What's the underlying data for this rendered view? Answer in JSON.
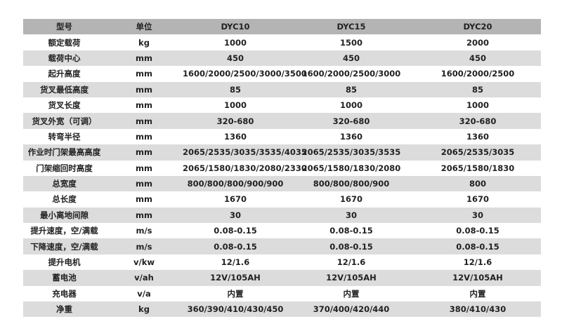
{
  "header": [
    "型号",
    "单位",
    "DYC10",
    "DYC15",
    "DYC20"
  ],
  "rows": [
    [
      "额定载荷",
      "kg",
      "1000",
      "1500",
      "2000"
    ],
    [
      "载荷中心",
      "mm",
      "450",
      "450",
      "450"
    ],
    [
      "起升高度",
      "mm",
      "1600/2000/2500/3000/3500",
      "1600/2000/2500/3000",
      "1600/2000/2500"
    ],
    [
      "货叉最低高度",
      "mm",
      "85",
      "85",
      "85"
    ],
    [
      "货叉长度",
      "mm",
      "1000",
      "1000",
      "1000"
    ],
    [
      "货叉外宽（可调）",
      "mm",
      "320-680",
      "320-680",
      "320-680"
    ],
    [
      "转弯半径",
      "mm",
      "1360",
      "1360",
      "1360"
    ],
    [
      "作业时门架最高高度",
      "mm",
      "2065/2535/3035/3535/4035",
      "2065/2535/3035/3535",
      "2065/2535/3035"
    ],
    [
      "门架缩回时高度",
      "mm",
      "2065/1580/1830/2080/2330",
      "2065/1580/1830/2080",
      "2065/1580/1830"
    ],
    [
      "总宽度",
      "mm",
      "800/800/800/900/900",
      "800/800/800/900",
      "800"
    ],
    [
      "总长度",
      "mm",
      "1670",
      "1670",
      "1670"
    ],
    [
      "最小离地间隙",
      "mm",
      "30",
      "30",
      "30"
    ],
    [
      "提升速度，空/满载",
      "m/s",
      "0.08-0.15",
      "0.08-0.15",
      "0.08-0.15"
    ],
    [
      "下降速度，空/满载",
      "m/s",
      "0.08-0.15",
      "0.08-0.15",
      "0.08-0.15"
    ],
    [
      "提升电机",
      "v/kw",
      "12/1.6",
      "12/1.6",
      "12/1.6"
    ],
    [
      "蓄电池",
      "v/ah",
      "12V/105AH",
      "12V/105AH",
      "12V/105AH"
    ],
    [
      "充电器",
      "v/a",
      "内置",
      "内置",
      "内置"
    ],
    [
      "净重",
      "kg",
      "360/390/410/430/450",
      "370/400/420/440",
      "380/410/430"
    ]
  ],
  "colors": {
    "header_bg": "#b4b4b4",
    "stripe_bg": "#dcdcdc",
    "text": "#222222"
  }
}
